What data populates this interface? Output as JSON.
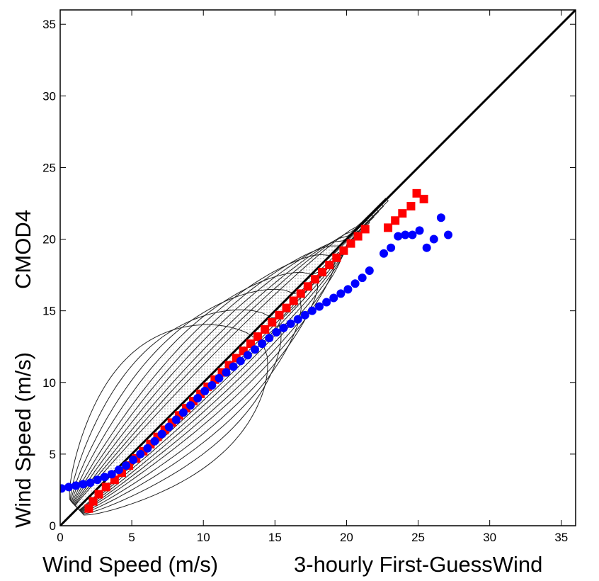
{
  "chart_data": {
    "type": "scatter",
    "title": "",
    "xlabel_left": "Wind Speed (m/s)",
    "xlabel_right": "3-hourly First-GuessWind",
    "ylabel_bottom": "Wind Speed (m/s)",
    "ylabel_top": "CMOD4",
    "xlim": [
      0,
      36
    ],
    "ylim": [
      0,
      36
    ],
    "xticks": [
      0,
      5,
      10,
      15,
      20,
      25,
      30,
      35
    ],
    "yticks": [
      0,
      5,
      10,
      15,
      20,
      25,
      30,
      35
    ],
    "grid": false,
    "legend": "none",
    "diagonal": {
      "x": [
        0,
        36
      ],
      "y": [
        0,
        36
      ],
      "color": "#000000"
    },
    "contour_color": "#222222",
    "contour_fill": "#b8b8b8",
    "series": [
      {
        "marker": "square",
        "color": "#ff0000",
        "x": [
          2.0,
          2.3,
          2.7,
          3.2,
          3.8,
          4.3,
          4.8,
          5.3,
          5.8,
          6.3,
          6.8,
          7.3,
          7.8,
          8.3,
          8.8,
          9.3,
          9.8,
          10.3,
          10.8,
          11.3,
          11.8,
          12.3,
          12.8,
          13.3,
          13.8,
          14.3,
          14.8,
          15.3,
          15.8,
          16.3,
          16.8,
          17.3,
          17.8,
          18.3,
          18.8,
          19.3,
          19.8,
          20.3,
          20.8,
          21.3,
          22.9,
          23.4,
          23.9,
          24.5,
          24.9,
          25.4
        ],
        "y": [
          1.2,
          1.7,
          2.2,
          2.7,
          3.2,
          3.7,
          4.2,
          4.7,
          5.2,
          5.7,
          6.2,
          6.7,
          7.2,
          7.7,
          8.2,
          8.7,
          9.2,
          9.7,
          10.2,
          10.7,
          11.2,
          11.7,
          12.2,
          12.7,
          13.2,
          13.7,
          14.2,
          14.7,
          15.2,
          15.7,
          16.2,
          16.7,
          17.2,
          17.7,
          18.2,
          18.7,
          19.2,
          19.7,
          20.2,
          20.7,
          20.8,
          21.3,
          21.8,
          22.3,
          23.2,
          22.8
        ]
      },
      {
        "marker": "circle",
        "color": "#0000ff",
        "x": [
          0.1,
          0.6,
          1.1,
          1.6,
          2.1,
          2.6,
          3.1,
          3.6,
          4.1,
          4.6,
          5.1,
          5.6,
          6.1,
          6.6,
          7.1,
          7.6,
          8.1,
          8.6,
          9.1,
          9.6,
          10.1,
          10.6,
          11.1,
          11.6,
          12.1,
          12.6,
          13.1,
          13.6,
          14.1,
          14.6,
          15.1,
          15.6,
          16.1,
          16.6,
          17.1,
          17.6,
          18.1,
          18.6,
          19.1,
          19.6,
          20.1,
          20.6,
          21.1,
          21.6,
          22.6,
          23.1,
          23.6,
          24.1,
          24.6,
          25.1,
          25.6,
          26.1,
          26.6,
          27.1
        ],
        "y": [
          2.6,
          2.7,
          2.8,
          2.9,
          3.0,
          3.2,
          3.4,
          3.6,
          3.9,
          4.2,
          4.6,
          5.0,
          5.4,
          5.9,
          6.4,
          6.9,
          7.4,
          7.9,
          8.4,
          8.9,
          9.4,
          9.8,
          10.3,
          10.7,
          11.1,
          11.5,
          11.9,
          12.3,
          12.7,
          13.1,
          13.5,
          13.8,
          14.1,
          14.4,
          14.7,
          15.0,
          15.3,
          15.6,
          15.9,
          16.2,
          16.5,
          16.9,
          17.3,
          17.8,
          19.0,
          19.4,
          20.2,
          20.3,
          20.3,
          20.6,
          19.4,
          20.0,
          21.5,
          20.3
        ]
      }
    ]
  }
}
